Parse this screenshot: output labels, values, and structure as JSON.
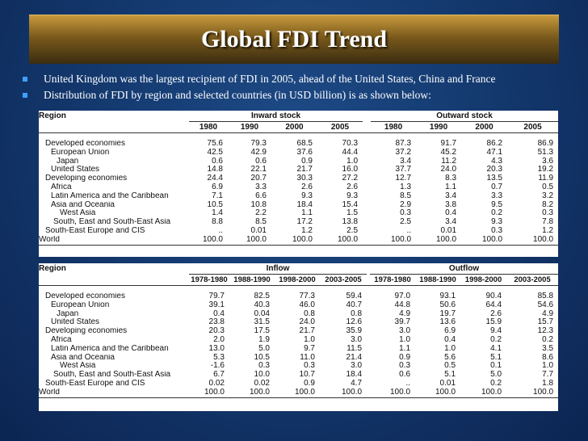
{
  "slide": {
    "title": "Global FDI Trend",
    "bullets": [
      "United Kingdom was the largest recipient of FDI in 2005, ahead of the United States, China and France",
      "Distribution of FDI by region and selected countries (in USD billion) is as shown below:"
    ]
  },
  "table1": {
    "region_header": "Region",
    "group_left": "Inward stock",
    "group_right": "Outward stock",
    "columns_left": [
      "1980",
      "1990",
      "2000",
      "2005"
    ],
    "columns_right": [
      "1980",
      "1990",
      "2000",
      "2005"
    ],
    "rows": [
      {
        "label": "Developed economies",
        "left": [
          "75.6",
          "79.3",
          "68.5",
          "70.3"
        ],
        "right": [
          "87.3",
          "91.7",
          "86.2",
          "86.9"
        ]
      },
      {
        "label": "European Union",
        "left": [
          "42.5",
          "42.9",
          "37.6",
          "44.4"
        ],
        "right": [
          "37.2",
          "45.2",
          "47.1",
          "51.3"
        ]
      },
      {
        "label": "Japan",
        "left": [
          "0.6",
          "0.6",
          "0.9",
          "1.0"
        ],
        "right": [
          "3.4",
          "11.2",
          "4.3",
          "3.6"
        ]
      },
      {
        "label": "United States",
        "left": [
          "14.8",
          "22.1",
          "21.7",
          "16.0"
        ],
        "right": [
          "37.7",
          "24.0",
          "20.3",
          "19.2"
        ]
      },
      {
        "label": "Developing economies",
        "left": [
          "24.4",
          "20.7",
          "30.3",
          "27.2"
        ],
        "right": [
          "12.7",
          "8.3",
          "13.5",
          "11.9"
        ]
      },
      {
        "label": "Africa",
        "left": [
          "6.9",
          "3.3",
          "2.6",
          "2.6"
        ],
        "right": [
          "1.3",
          "1.1",
          "0.7",
          "0.5"
        ]
      },
      {
        "label": "Latin America and the Caribbean",
        "left": [
          "7.1",
          "6.6",
          "9.3",
          "9.3"
        ],
        "right": [
          "8.5",
          "3.4",
          "3.3",
          "3.2"
        ]
      },
      {
        "label": "Asia and Oceania",
        "left": [
          "10.5",
          "10.8",
          "18.4",
          "15.4"
        ],
        "right": [
          "2.9",
          "3.8",
          "9.5",
          "8.2"
        ]
      },
      {
        "label": "West Asia",
        "left": [
          "1.4",
          "2.2",
          "1.1",
          "1.5"
        ],
        "right": [
          "0.3",
          "0.4",
          "0.2",
          "0.3"
        ]
      },
      {
        "label": "South, East and South-East Asia",
        "left": [
          "8.8",
          "8.5",
          "17.2",
          "13.8"
        ],
        "right": [
          "2.5",
          "3.4",
          "9.3",
          "7.8"
        ]
      },
      {
        "label": "South-East Europe and CIS",
        "left": [
          "..",
          "0.01",
          "1.2",
          "2.5"
        ],
        "right": [
          "..",
          "0.01",
          "0.3",
          "1.2"
        ]
      },
      {
        "label": "World",
        "left": [
          "100.0",
          "100.0",
          "100.0",
          "100.0"
        ],
        "right": [
          "100.0",
          "100.0",
          "100.0",
          "100.0"
        ]
      }
    ]
  },
  "table2": {
    "region_header": "Region",
    "group_left": "Inflow",
    "group_right": "Outflow",
    "columns_left": [
      "1978-1980",
      "1988-1990",
      "1998-2000",
      "2003-2005"
    ],
    "columns_right": [
      "1978-1980",
      "1988-1990",
      "1998-2000",
      "2003-2005"
    ],
    "rows": [
      {
        "label": "Developed economies",
        "left": [
          "79.7",
          "82.5",
          "77.3",
          "59.4"
        ],
        "right": [
          "97.0",
          "93.1",
          "90.4",
          "85.8"
        ]
      },
      {
        "label": "European Union",
        "left": [
          "39.1",
          "40.3",
          "46.0",
          "40.7"
        ],
        "right": [
          "44.8",
          "50.6",
          "64.4",
          "54.6"
        ]
      },
      {
        "label": "Japan",
        "left": [
          "0.4",
          "0.04",
          "0.8",
          "0.8"
        ],
        "right": [
          "4.9",
          "19.7",
          "2.6",
          "4.9"
        ]
      },
      {
        "label": "United States",
        "left": [
          "23.8",
          "31.5",
          "24.0",
          "12.6"
        ],
        "right": [
          "39.7",
          "13.6",
          "15.9",
          "15.7"
        ]
      },
      {
        "label": "Developing economies",
        "left": [
          "20.3",
          "17.5",
          "21.7",
          "35.9"
        ],
        "right": [
          "3.0",
          "6.9",
          "9.4",
          "12.3"
        ]
      },
      {
        "label": "Africa",
        "left": [
          "2.0",
          "1.9",
          "1.0",
          "3.0"
        ],
        "right": [
          "1.0",
          "0.4",
          "0.2",
          "0.2"
        ]
      },
      {
        "label": "Latin America and the Caribbean",
        "left": [
          "13.0",
          "5.0",
          "9.7",
          "11.5"
        ],
        "right": [
          "1.1",
          "1.0",
          "4.1",
          "3.5"
        ]
      },
      {
        "label": "Asia and Oceania",
        "left": [
          "5.3",
          "10.5",
          "11.0",
          "21.4"
        ],
        "right": [
          "0.9",
          "5.6",
          "5.1",
          "8.6"
        ]
      },
      {
        "label": "West Asia",
        "left": [
          "-1.6",
          "0.3",
          "0.3",
          "3.0"
        ],
        "right": [
          "0.3",
          "0.5",
          "0.1",
          "1.0"
        ]
      },
      {
        "label": "South, East and South-East Asia",
        "left": [
          "6.7",
          "10.0",
          "10.7",
          "18.4"
        ],
        "right": [
          "0.6",
          "5.1",
          "5.0",
          "7.7"
        ]
      },
      {
        "label": "South-East Europe and CIS",
        "left": [
          "0.02",
          "0.02",
          "0.9",
          "4.7"
        ],
        "right": [
          "..",
          "0.01",
          "0.2",
          "1.8"
        ]
      },
      {
        "label": "World",
        "left": [
          "100.0",
          "100.0",
          "100.0",
          "100.0"
        ],
        "right": [
          "100.0",
          "100.0",
          "100.0",
          "100.0"
        ]
      }
    ]
  }
}
